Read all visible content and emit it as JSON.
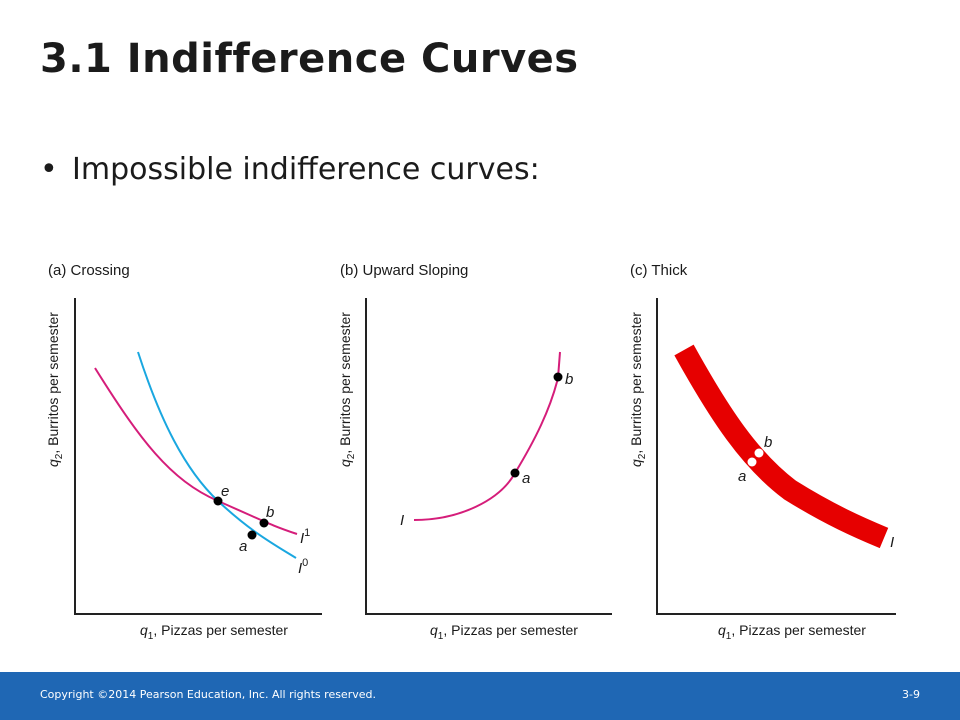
{
  "title": "3.1  Indifference Curves",
  "bullet": "Impossible indifference curves:",
  "colors": {
    "magenta": "#d51d7a",
    "cyan": "#1aa7e0",
    "red": "#e60000",
    "footer": "#1f67b4"
  },
  "panels": {
    "a": {
      "title": "(a) Crossing",
      "ylabel_var": "q",
      "ylabel_sub": "2",
      "ylabel_text": ", Burritos per semester",
      "xlabel_var": "q",
      "xlabel_sub": "1",
      "xlabel_text": ", Pizzas per semester",
      "curve1_label": "I",
      "curve1_sup": "1",
      "curve0_label": "I",
      "curve0_sup": "0",
      "point_e": "e",
      "point_b": "b",
      "point_a": "a"
    },
    "b": {
      "title": "(b) Upward Sloping",
      "ylabel_var": "q",
      "ylabel_sub": "2",
      "ylabel_text": ", Burritos per semester",
      "xlabel_var": "q",
      "xlabel_sub": "1",
      "xlabel_text": ", Pizzas per semester",
      "curve_label": "I",
      "point_b": "b",
      "point_a": "a"
    },
    "c": {
      "title": "(c) Thick",
      "ylabel_var": "q",
      "ylabel_sub": "2",
      "ylabel_text": ", Burritos per semester",
      "xlabel_var": "q",
      "xlabel_sub": "1",
      "xlabel_text": ", Pizzas per semester",
      "curve_label": "I",
      "point_b": "b",
      "point_a": "a"
    }
  },
  "footer": {
    "copyright": "Copyright ©2014 Pearson Education, Inc. All rights reserved.",
    "page": "3-9"
  }
}
